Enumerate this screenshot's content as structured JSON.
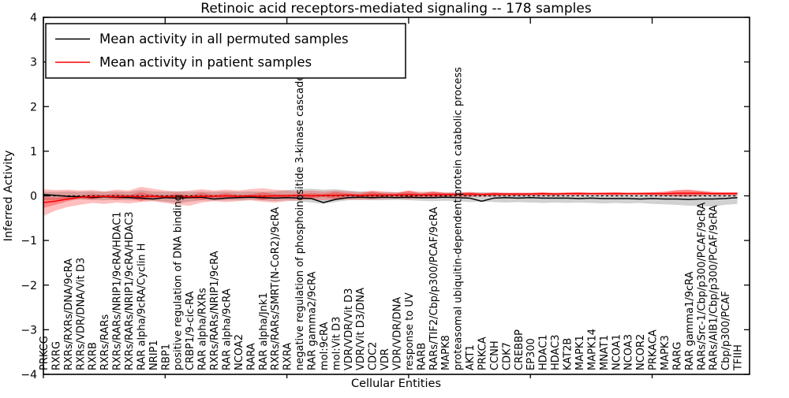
{
  "figure": {
    "title": "Retinoic acid receptors-mediated signaling -- 178 samples",
    "xlabel": "Cellular Entities",
    "ylabel": "Inferred Activity"
  },
  "chart_data": {
    "type": "line",
    "title": "Retinoic acid receptors-mediated signaling -- 178 samples",
    "xlabel": "Cellular Entities",
    "ylabel": "Inferred Activity",
    "ylim": [
      -4,
      4
    ],
    "xlim": [
      0,
      58
    ],
    "grid": false,
    "legend_position": "upper left",
    "yticks": [
      {
        "value": -4,
        "label": "−4"
      },
      {
        "value": -3,
        "label": "−3"
      },
      {
        "value": -2,
        "label": "−2"
      },
      {
        "value": -1,
        "label": "−1"
      },
      {
        "value": 0,
        "label": "0"
      },
      {
        "value": 1,
        "label": "1"
      },
      {
        "value": 2,
        "label": "2"
      },
      {
        "value": 3,
        "label": "3"
      },
      {
        "value": 4,
        "label": "4"
      }
    ],
    "xtick_major_values": [
      0,
      10,
      20,
      30,
      40,
      50
    ],
    "categories": [
      "PRKCG",
      "RXRG",
      "RXRs/RXRs/DNA/9cRA",
      "RXRs/VDR/DNA/Vit D3",
      "RXRB",
      "RXRs/RARs",
      "RXRs/RARs/NRIP1/9cRA/HDAC1",
      "RXRs/RARs/NRIP1/9cRA/HDAC3",
      "RAR alpha/9cRA/Cyclin H",
      "NRIP1",
      "RBP1",
      "positive regulation of DNA binding",
      "CRBP1/9-cic-RA",
      "RAR alpha/RXRs",
      "RXRs/RARs/NRIP1/9cRA",
      "RAR alpha/9cRA",
      "NCOA2",
      "RARA",
      "RAR alpha/Jnk1",
      "RXRs/RARs/SMRT(N-CoR2)/9cRA",
      "RXRA",
      "negative regulation of phosphoinositide 3-kinase cascade",
      "RAR gamma2/9cRA",
      "mol:9cRA",
      "mol:Vit D3",
      "VDR/VDR/Vit D3",
      "VDR/Vit D3/DNA",
      "CDC2",
      "VDR",
      "VDR/VDR/DNA",
      "response to UV",
      "RARB",
      "RARs/TIF2/Cbp/p300/PCAF/9cRA",
      "MAPK8",
      "proteasomal ubiquitin-dependent protein catabolic process",
      "AKT1",
      "PRKCA",
      "CCNH",
      "CDK7",
      "CREBBP",
      "EP300",
      "HDAC1",
      "HDAC3",
      "KAT2B",
      "MAPK1",
      "MAPK14",
      "MNAT1",
      "NCOA1",
      "NCOA3",
      "NCOR2",
      "PRKACA",
      "MAPK3",
      "RARG",
      "RAR gamma1/9cRA",
      "RARs/Src-1/Cbp/p300/PCAF/9cRA",
      "RARs/AIB1/Cbp/p300/PCAF/9cRA",
      "Cbp/p300/PCAF",
      "TFIIH"
    ],
    "series": [
      {
        "name": "Mean activity in all permuted samples",
        "color": "#000000",
        "values": [
          0.03,
          0.01,
          -0.01,
          -0.02,
          -0.04,
          -0.02,
          -0.03,
          -0.04,
          -0.05,
          -0.07,
          -0.04,
          -0.05,
          -0.04,
          -0.03,
          -0.07,
          -0.05,
          -0.04,
          -0.03,
          -0.04,
          -0.05,
          -0.04,
          -0.05,
          -0.06,
          -0.15,
          -0.08,
          -0.04,
          -0.03,
          -0.04,
          -0.03,
          -0.04,
          -0.03,
          -0.04,
          -0.04,
          -0.03,
          -0.04,
          -0.05,
          -0.12,
          -0.05,
          -0.04,
          -0.05,
          -0.04,
          -0.05,
          -0.05,
          -0.05,
          -0.06,
          -0.05,
          -0.06,
          -0.06,
          -0.06,
          -0.07,
          -0.06,
          -0.07,
          -0.07,
          -0.08,
          -0.07,
          -0.07,
          -0.06,
          -0.04
        ]
      },
      {
        "name": "Mean activity in patient samples",
        "color": "#ff0000",
        "values": [
          -0.15,
          -0.12,
          -0.07,
          -0.03,
          -0.02,
          -0.01,
          -0.02,
          -0.01,
          -0.02,
          -0.01,
          -0.02,
          -0.01,
          -0.02,
          -0.01,
          -0.01,
          0.0,
          -0.01,
          0.0,
          -0.01,
          0.0,
          0.0,
          0.01,
          0.0,
          0.01,
          0.01,
          0.02,
          0.01,
          0.02,
          0.02,
          0.02,
          0.03,
          0.02,
          0.03,
          0.03,
          0.03,
          0.04,
          0.03,
          0.04,
          0.04,
          0.04,
          0.04,
          0.05,
          0.04,
          0.05,
          0.05,
          0.05,
          0.05,
          0.05,
          0.05,
          0.05,
          0.05,
          0.05,
          0.06,
          0.06,
          0.06,
          0.05,
          0.05,
          0.05
        ]
      }
    ],
    "bands": [
      {
        "name": "permuted-samples-band",
        "color": "rgba(0,0,0,0.18)",
        "upper": [
          0.09,
          0.09,
          0.1,
          0.09,
          0.1,
          0.09,
          0.1,
          0.09,
          0.13,
          0.1,
          0.09,
          0.1,
          0.09,
          0.1,
          0.09,
          0.1,
          0.09,
          0.1,
          0.09,
          0.1,
          0.13,
          0.15,
          0.16,
          0.14,
          0.15,
          0.12,
          0.1,
          0.09,
          0.08,
          0.08,
          0.08,
          0.07,
          0.08,
          0.07,
          0.08,
          0.07,
          0.08,
          0.07,
          0.07,
          0.06,
          0.07,
          0.06,
          0.07,
          0.06,
          0.07,
          0.06,
          0.06,
          0.07,
          0.06,
          0.06,
          0.07,
          0.06,
          0.07,
          0.06,
          0.07,
          0.06,
          0.07,
          0.07
        ],
        "lower": [
          -0.1,
          -0.09,
          -0.1,
          -0.08,
          -0.09,
          -0.1,
          -0.09,
          -0.1,
          -0.1,
          -0.11,
          -0.13,
          -0.16,
          -0.13,
          -0.1,
          -0.11,
          -0.1,
          -0.1,
          -0.09,
          -0.1,
          -0.12,
          -0.1,
          -0.12,
          -0.15,
          -0.18,
          -0.14,
          -0.1,
          -0.09,
          -0.1,
          -0.1,
          -0.09,
          -0.1,
          -0.11,
          -0.12,
          -0.11,
          -0.12,
          -0.14,
          -0.13,
          -0.14,
          -0.15,
          -0.14,
          -0.15,
          -0.16,
          -0.15,
          -0.16,
          -0.15,
          -0.16,
          -0.17,
          -0.16,
          -0.17,
          -0.16,
          -0.18,
          -0.19,
          -0.2,
          -0.22,
          -0.23,
          -0.24,
          -0.2,
          -0.18
        ]
      },
      {
        "name": "patient-samples-band-outer",
        "color": "rgba(255,0,0,0.25)",
        "upper": [
          0.15,
          0.13,
          0.14,
          0.12,
          0.13,
          0.1,
          0.14,
          0.12,
          0.2,
          0.16,
          0.12,
          0.1,
          0.12,
          0.15,
          0.12,
          0.14,
          0.12,
          0.15,
          0.17,
          0.14,
          0.12,
          0.1,
          0.12,
          0.1,
          0.12,
          0.1,
          0.08,
          0.12,
          0.1,
          0.08,
          0.12,
          0.09,
          0.1,
          0.08,
          0.07,
          0.08,
          0.07,
          0.07,
          0.07,
          0.07,
          0.07,
          0.08,
          0.07,
          0.08,
          0.08,
          0.07,
          0.08,
          0.08,
          0.07,
          0.08,
          0.08,
          0.09,
          0.12,
          0.13,
          0.11,
          0.09,
          0.08,
          0.08
        ],
        "lower": [
          -0.45,
          -0.33,
          -0.25,
          -0.2,
          -0.16,
          -0.18,
          -0.15,
          -0.17,
          -0.14,
          -0.12,
          -0.16,
          -0.2,
          -0.22,
          -0.15,
          -0.12,
          -0.14,
          -0.12,
          -0.1,
          -0.13,
          -0.15,
          -0.12,
          -0.1,
          -0.08,
          -0.1,
          -0.09,
          -0.08,
          -0.09,
          -0.08,
          -0.07,
          -0.06,
          -0.07,
          -0.06,
          -0.05,
          -0.04,
          -0.03,
          -0.02,
          -0.02,
          -0.01,
          -0.01,
          0.0,
          0.0,
          0.01,
          0.0,
          0.01,
          0.01,
          0.02,
          0.01,
          0.01,
          0.02,
          0.02,
          0.01,
          0.0,
          -0.01,
          0.0,
          0.01,
          0.02,
          0.02,
          0.02
        ]
      },
      {
        "name": "patient-samples-band-inner",
        "color": "rgba(255,0,0,0.30)",
        "upper": [
          -0.03,
          -0.04,
          -0.02,
          0.0,
          0.04,
          0.02,
          0.05,
          0.02,
          0.08,
          0.03,
          0.01,
          0.05,
          0.01,
          0.07,
          0.02,
          0.06,
          0.02,
          0.03,
          0.08,
          0.04,
          0.03,
          0.04,
          0.06,
          0.04,
          0.09,
          0.05,
          0.04,
          0.1,
          0.05,
          0.05,
          0.12,
          0.05,
          0.1,
          0.06,
          0.06,
          0.09,
          0.05,
          0.08,
          0.06,
          0.07,
          0.06,
          0.08,
          0.06,
          0.07,
          0.08,
          0.07,
          0.07,
          0.08,
          0.07,
          0.07,
          0.08,
          0.09,
          0.13,
          0.14,
          0.11,
          0.08,
          0.08,
          0.08
        ],
        "lower": [
          -0.27,
          -0.2,
          -0.12,
          -0.06,
          -0.08,
          -0.04,
          -0.09,
          -0.04,
          -0.12,
          -0.05,
          -0.05,
          -0.07,
          -0.05,
          -0.09,
          -0.04,
          -0.06,
          -0.04,
          -0.03,
          -0.1,
          -0.04,
          -0.03,
          -0.02,
          -0.06,
          -0.02,
          -0.07,
          -0.01,
          -0.02,
          -0.06,
          -0.01,
          -0.01,
          -0.06,
          -0.01,
          -0.04,
          0.0,
          0.0,
          -0.01,
          0.01,
          0.0,
          0.02,
          0.01,
          0.02,
          0.02,
          0.02,
          0.03,
          0.02,
          0.03,
          0.03,
          0.02,
          0.03,
          0.03,
          0.02,
          0.01,
          -0.01,
          -0.02,
          0.01,
          0.02,
          0.02,
          0.02
        ]
      }
    ],
    "zero_line": {
      "value": 0,
      "style": "dashed",
      "color": "#000000"
    }
  }
}
